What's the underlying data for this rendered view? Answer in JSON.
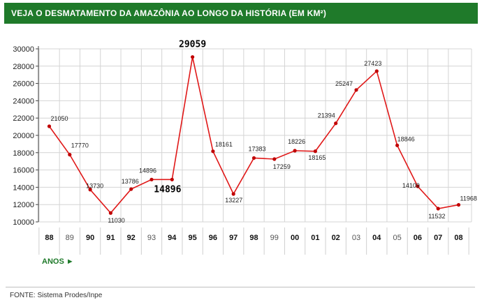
{
  "header": {
    "title": "VEJA O DESMATAMENTO DA AMAZÔNIA AO LONGO DA HISTÓRIA (EM KM²)"
  },
  "footer": {
    "source": "FONTE: Sistema Prodes/Inpe"
  },
  "colors": {
    "header_bg": "#1f7a2a",
    "line": "#e01818",
    "marker": "#c00000",
    "grid": "#d4d4d4"
  },
  "chart_data": {
    "type": "line",
    "title": "VEJA O DESMATAMENTO DA AMAZÔNIA AO LONGO DA HISTÓRIA (EM KM²)",
    "xlabel": "ANOS ►",
    "ylabel": "",
    "ylim": [
      10000,
      30000
    ],
    "yticks": [
      10000,
      12000,
      14000,
      16000,
      18000,
      20000,
      22000,
      24000,
      26000,
      28000,
      30000
    ],
    "grid": true,
    "categories": [
      "88",
      "89",
      "90",
      "91",
      "92",
      "93",
      "94",
      "95",
      "96",
      "97",
      "98",
      "99",
      "00",
      "01",
      "02",
      "03",
      "04",
      "05",
      "06",
      "07",
      "08"
    ],
    "bold_categories": [
      "88",
      "90",
      "91",
      "92",
      "94",
      "95",
      "96",
      "97",
      "98",
      "00",
      "01",
      "02",
      "04",
      "06",
      "07",
      "08"
    ],
    "values": [
      21050,
      17770,
      13730,
      11030,
      13786,
      14896,
      14896,
      29059,
      18161,
      13227,
      17383,
      17259,
      18226,
      18165,
      21394,
      25247,
      27423,
      18846,
      14109,
      11532,
      11968
    ],
    "point_labels": [
      "21050",
      "17770",
      "13730",
      "11030",
      "13786",
      "14896",
      "14896",
      "29059",
      "18161",
      "13227",
      "17383",
      "17259",
      "18226",
      "18165",
      "21394",
      "25247",
      "27423",
      "18846",
      "14109",
      "11532",
      "11968"
    ],
    "highlighted_points": [
      6,
      7
    ]
  }
}
